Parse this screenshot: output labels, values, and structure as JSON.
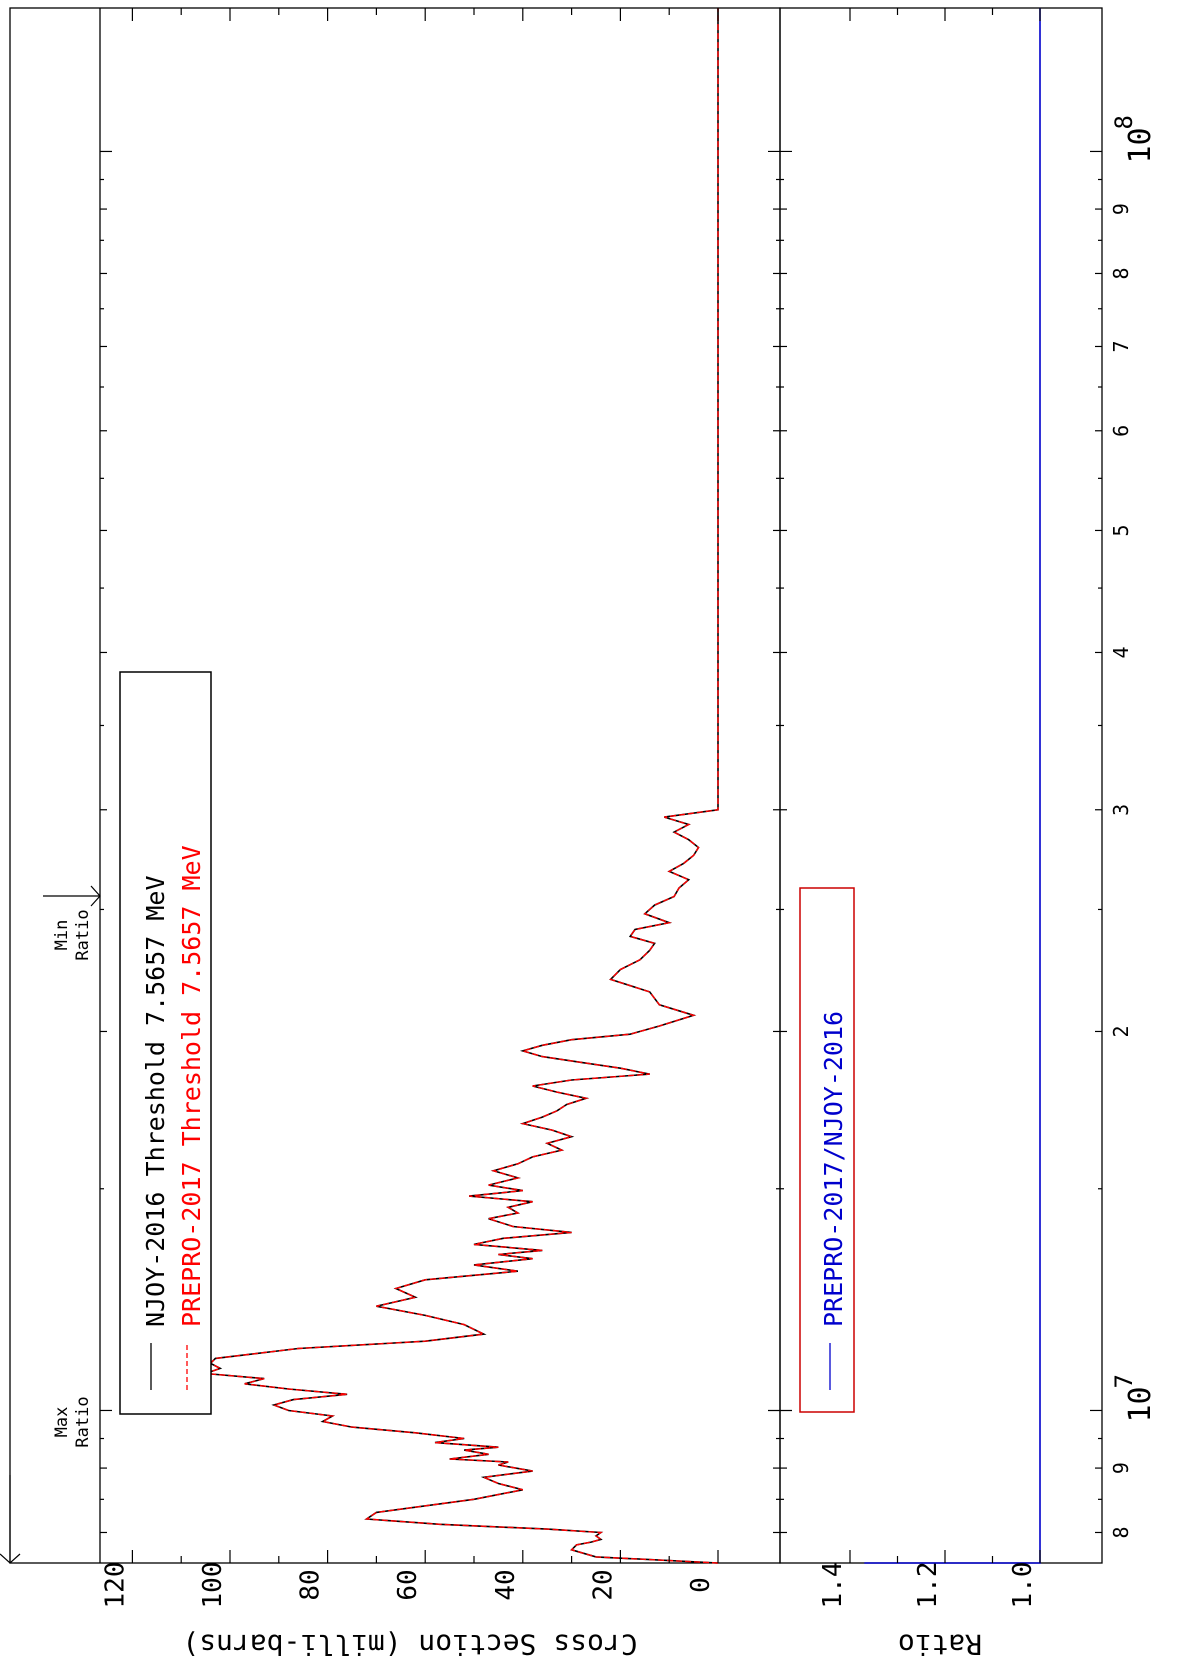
{
  "chart_data": {
    "type": "line",
    "orientation": "rotated-90-clockwise",
    "xscale": "log",
    "xlim": [
      7565700,
      130000000
    ],
    "x_tick_labels": {
      "major": [
        {
          "value": 10000000,
          "base": "10",
          "exp": "7"
        },
        {
          "value": 100000000,
          "base": "10",
          "exp": "8"
        }
      ],
      "minor": [
        {
          "value": 8000000,
          "label": "8"
        },
        {
          "value": 9000000,
          "label": "9"
        },
        {
          "value": 20000000,
          "label": "2"
        },
        {
          "value": 30000000,
          "label": "3"
        },
        {
          "value": 40000000,
          "label": "4"
        },
        {
          "value": 50000000,
          "label": "5"
        },
        {
          "value": 60000000,
          "label": "6"
        },
        {
          "value": 70000000,
          "label": "7"
        },
        {
          "value": 80000000,
          "label": "8"
        },
        {
          "value": 90000000,
          "label": "9"
        }
      ]
    },
    "top_panel": {
      "ylabel": "Cross Section (milli-barns)",
      "ylim": [
        0,
        130
      ],
      "yticks": [
        0,
        20,
        40,
        60,
        80,
        100,
        120
      ],
      "ytick_labels": [
        "0",
        "20",
        "40",
        "60",
        "80",
        "100",
        "120"
      ],
      "legend": {
        "placement": "upper-left"
      },
      "series": [
        {
          "name": "NJOY-2016 Threshold 7.5657 MeV",
          "color": "#000000",
          "style": "solid"
        },
        {
          "name": "PREPRO-2017 Threshold 7.5657 MeV",
          "color": "#ff0000",
          "style": "dashed"
        }
      ],
      "x": [
        7565700,
        7650000,
        7750000,
        7820000,
        7860000,
        7900000,
        7950000,
        8000000,
        8050000,
        8120000,
        8200000,
        8300000,
        8500000,
        8650000,
        8750000,
        8850000,
        8950000,
        9050000,
        9100000,
        9150000,
        9230000,
        9300000,
        9350000,
        9430000,
        9500000,
        9600000,
        9700000,
        9800000,
        9900000,
        10000000,
        10100000,
        10200000,
        10300000,
        10400000,
        10500000,
        10600000,
        10700000,
        10800000,
        10900000,
        11000000,
        11200000,
        11350000,
        11500000,
        11700000,
        11900000,
        12100000,
        12300000,
        12500000,
        12700000,
        12900000,
        13050000,
        13200000,
        13300000,
        13400000,
        13550000,
        13700000,
        13850000,
        14000000,
        14200000,
        14350000,
        14500000,
        14650000,
        14800000,
        14950000,
        15100000,
        15300000,
        15500000,
        15700000,
        15900000,
        16100000,
        16300000,
        16500000,
        16700000,
        16900000,
        17100000,
        17300000,
        17500000,
        17700000,
        17900000,
        18100000,
        18300000,
        18500000,
        18700000,
        18900000,
        19100000,
        19300000,
        19500000,
        19700000,
        19900000,
        20200000,
        20600000,
        21000000,
        21500000,
        22000000,
        22400000,
        22800000,
        23200000,
        23500000,
        23800000,
        24100000,
        24400000,
        24800000,
        25200000,
        25600000,
        26000000,
        26400000,
        26800000,
        27200000,
        27600000,
        28000000,
        28400000,
        28800000,
        29200000,
        29600000,
        30000000,
        130000000
      ],
      "y": [
        0,
        25,
        30,
        29,
        26,
        24,
        25,
        24,
        35,
        57,
        72,
        70,
        50,
        40,
        45,
        48,
        38,
        45,
        43,
        55,
        47,
        52,
        45,
        58,
        52,
        62,
        75,
        81,
        79,
        88,
        91,
        87,
        76,
        88,
        97,
        93,
        105,
        102,
        104,
        103,
        86,
        60,
        48,
        52,
        60,
        70,
        62,
        66,
        60,
        41,
        50,
        38,
        45,
        36,
        50,
        44,
        30,
        42,
        47,
        41,
        43,
        38,
        51,
        40,
        47,
        41,
        46,
        41,
        38,
        32,
        35,
        30,
        34,
        40,
        36,
        33,
        31,
        27,
        33,
        38,
        30,
        14,
        20,
        28,
        36,
        40,
        36,
        30,
        18,
        12,
        5,
        12,
        14,
        22,
        20,
        16,
        14,
        13,
        18,
        17,
        10,
        15,
        13,
        9,
        8,
        6,
        10,
        7,
        5,
        4,
        6,
        9,
        6,
        11,
        0,
        0
      ]
    },
    "ratio_panel": {
      "ylabel": "Ratio",
      "ylim": [
        0.98,
        1.48
      ],
      "yticks": [
        1.0,
        1.2,
        1.4
      ],
      "ytick_labels": [
        "1.0",
        "1.2",
        "1.4"
      ],
      "legend": {
        "placement": "upper-left"
      },
      "series": [
        {
          "name": "PREPRO-2017/NJOY-2016",
          "color": "#0000cc",
          "style": "solid"
        }
      ],
      "x": [
        7565700,
        7565700,
        130000000
      ],
      "y": [
        1.37,
        1.0,
        1.0
      ]
    },
    "annotations": [
      {
        "text_lines": [
          "Max",
          "Ratio"
        ],
        "x": 7565700
      },
      {
        "text_lines": [
          "Min",
          "Ratio"
        ],
        "x": 24500000
      }
    ]
  }
}
